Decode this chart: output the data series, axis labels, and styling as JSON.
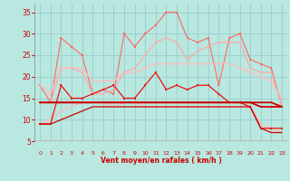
{
  "background_color": "#b8e8e0",
  "grid_color": "#99cccc",
  "x_labels": [
    0,
    1,
    2,
    3,
    4,
    5,
    6,
    7,
    8,
    9,
    10,
    11,
    12,
    13,
    14,
    15,
    16,
    17,
    18,
    19,
    20,
    21,
    22,
    23
  ],
  "xlabel": "Vent moyen/en rafales ( km/h )",
  "ylim": [
    5,
    37
  ],
  "yticks": [
    5,
    10,
    15,
    20,
    25,
    30,
    35
  ],
  "series": [
    {
      "name": "rafales_max_jagged",
      "color": "#ff6666",
      "linewidth": 0.8,
      "marker": "s",
      "markersize": 2.0,
      "alpha": 1.0,
      "data": [
        18,
        14,
        29,
        27,
        25,
        16,
        17,
        16,
        30,
        27,
        30,
        32,
        35,
        35,
        29,
        28,
        29,
        18,
        29,
        30,
        24,
        23,
        22,
        13
      ]
    },
    {
      "name": "rafales_smooth",
      "color": "#ffaaaa",
      "linewidth": 0.9,
      "marker": "s",
      "markersize": 2.0,
      "alpha": 1.0,
      "data": [
        14,
        14,
        22,
        22,
        21,
        16,
        16,
        17,
        21,
        22,
        25,
        28,
        29,
        28,
        24,
        26,
        27,
        28,
        28,
        28,
        22,
        21,
        21,
        13
      ]
    },
    {
      "name": "vent_smooth_upper",
      "color": "#ffbbbb",
      "linewidth": 1.0,
      "marker": null,
      "markersize": 0,
      "alpha": 1.0,
      "data": [
        18,
        16,
        22,
        22,
        22,
        19,
        19,
        19,
        21,
        21,
        22,
        23,
        23,
        23,
        23,
        23,
        23,
        23,
        23,
        22,
        21,
        20,
        19,
        15
      ]
    },
    {
      "name": "vent_smooth_lower",
      "color": "#ffbbbb",
      "linewidth": 1.0,
      "marker": null,
      "markersize": 0,
      "alpha": 1.0,
      "data": [
        9,
        10,
        12,
        13,
        14,
        14,
        14,
        13,
        14,
        14,
        13,
        13,
        13,
        13,
        13,
        13,
        13,
        13,
        13,
        13,
        13,
        9,
        8,
        7
      ]
    },
    {
      "name": "vent_max",
      "color": "#ee1111",
      "linewidth": 0.9,
      "marker": "s",
      "markersize": 2.0,
      "alpha": 1.0,
      "data": [
        9,
        9,
        18,
        15,
        15,
        16,
        17,
        18,
        15,
        15,
        18,
        21,
        17,
        18,
        17,
        18,
        18,
        16,
        14,
        14,
        13,
        8,
        8,
        8
      ]
    },
    {
      "name": "vent_mean1",
      "color": "#cc0000",
      "linewidth": 1.3,
      "marker": null,
      "markersize": 0,
      "alpha": 1.0,
      "data": [
        14,
        14,
        14,
        14,
        14,
        14,
        14,
        14,
        14,
        14,
        14,
        14,
        14,
        14,
        14,
        14,
        14,
        14,
        14,
        14,
        14,
        14,
        14,
        13
      ]
    },
    {
      "name": "vent_mean2",
      "color": "#cc0000",
      "linewidth": 1.3,
      "marker": null,
      "markersize": 0,
      "alpha": 1.0,
      "data": [
        14,
        14,
        14,
        14,
        14,
        14,
        14,
        14,
        14,
        14,
        14,
        14,
        14,
        14,
        14,
        14,
        14,
        14,
        14,
        14,
        14,
        13,
        13,
        13
      ]
    },
    {
      "name": "vent_min_smooth",
      "color": "#cc0000",
      "linewidth": 0.9,
      "marker": null,
      "markersize": 0,
      "alpha": 1.0,
      "data": [
        9,
        9,
        10,
        11,
        12,
        13,
        13,
        13,
        13,
        13,
        13,
        13,
        13,
        13,
        13,
        13,
        13,
        13,
        13,
        13,
        13,
        8,
        7,
        7
      ]
    }
  ],
  "arrow_color": "#cc0000",
  "tick_color": "#cc0000",
  "label_color": "#cc0000"
}
